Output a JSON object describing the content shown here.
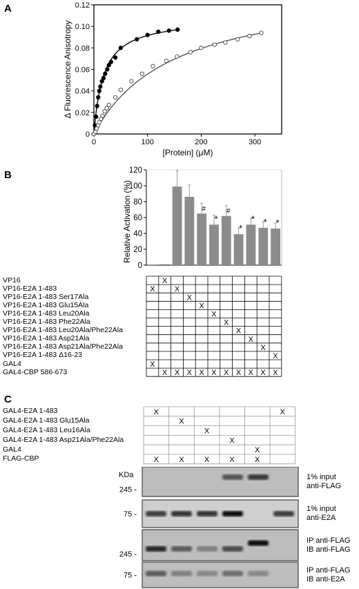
{
  "panel_labels": {
    "a": "A",
    "b": "B",
    "c": "C"
  },
  "chart_data": [
    {
      "type": "scatter",
      "title": "",
      "xlabel": "[Protein] (μM)",
      "ylabel": "Δ Fluorescence Anisotropy",
      "xlim": [
        0,
        350
      ],
      "ylim": [
        0,
        0.12
      ],
      "x_ticks": [
        0,
        100,
        200,
        300
      ],
      "y_ticks": [
        0,
        0.02,
        0.04,
        0.06,
        0.08,
        0.1,
        0.12
      ],
      "y_tick_labels": [
        "0",
        "0.02",
        "0.04",
        "0.06",
        "0.08",
        "0.10",
        "0.12"
      ],
      "grid": false,
      "series": [
        {
          "marker": "filled",
          "color": "#000000",
          "points": [
            [
              0,
              0
            ],
            [
              2,
              0.008
            ],
            [
              4,
              0.016
            ],
            [
              6,
              0.026
            ],
            [
              8,
              0.034
            ],
            [
              10,
              0.04
            ],
            [
              12,
              0.044
            ],
            [
              15,
              0.049
            ],
            [
              18,
              0.052
            ],
            [
              21,
              0.056
            ],
            [
              25,
              0.06
            ],
            [
              28,
              0.064
            ],
            [
              32,
              0.067
            ],
            [
              40,
              0.071
            ],
            [
              50,
              0.08
            ],
            [
              80,
              0.088
            ],
            [
              100,
              0.092
            ],
            [
              120,
              0.095
            ],
            [
              140,
              0.096
            ],
            [
              156,
              0.097
            ]
          ],
          "fit_kd": 18,
          "fit_bmax": 0.108
        },
        {
          "marker": "open",
          "color": "#555555",
          "points": [
            [
              0,
              0
            ],
            [
              3,
              0.002
            ],
            [
              5,
              0.005
            ],
            [
              8,
              0.008
            ],
            [
              10,
              0.011
            ],
            [
              13,
              0.014
            ],
            [
              16,
              0.017
            ],
            [
              20,
              0.021
            ],
            [
              24,
              0.024
            ],
            [
              28,
              0.027
            ],
            [
              40,
              0.034
            ],
            [
              50,
              0.041
            ],
            [
              70,
              0.049
            ],
            [
              90,
              0.056
            ],
            [
              110,
              0.063
            ],
            [
              135,
              0.068
            ],
            [
              155,
              0.072
            ],
            [
              180,
              0.076
            ],
            [
              200,
              0.08
            ],
            [
              225,
              0.083
            ],
            [
              245,
              0.085
            ],
            [
              268,
              0.088
            ],
            [
              290,
              0.091
            ],
            [
              312,
              0.094
            ]
          ],
          "fit_kd": 150,
          "fit_bmax": 0.139
        }
      ]
    },
    {
      "type": "bar",
      "title": "",
      "xlabel": "",
      "ylabel": "Relative Activation (%)",
      "ylim": [
        0,
        120
      ],
      "y_ticks": [
        0,
        20,
        40,
        60,
        80,
        100,
        120
      ],
      "grid": false,
      "values": [
        0.5,
        0.8,
        99,
        86,
        65,
        51,
        62,
        39,
        51,
        47,
        46
      ],
      "errors": [
        0,
        0,
        20,
        15,
        13,
        12,
        13,
        8,
        8,
        8,
        7
      ],
      "annotations": [
        "",
        "",
        "",
        "",
        "#",
        "*",
        "#",
        "*",
        "*",
        "*",
        "*"
      ],
      "bar_color": "#8c8c8c"
    }
  ],
  "table_b": {
    "rows": [
      "VP16",
      "VP16-E2A 1-483",
      "VP16-E2A 1-483 Ser17Ala",
      "VP16-E2A 1-483 Glu15Ala",
      "VP16-E2A 1-483 Leu20Ala",
      "VP16-E2A 1-483 Phe22Ala",
      "VP16-E2A 1-483 Leu20Ala/Phe22Ala",
      "VP16-E2A 1-483 Asp21Ala",
      "VP16-E2A 1-483 Asp21Ala/Phe22Ala",
      "VP16-E2A 1-483 Δ16-23",
      "GAL4",
      "GAL4-CBP 586-673"
    ],
    "mark": "X",
    "marks": [
      [
        0,
        1
      ],
      [
        1,
        0
      ],
      [
        1,
        2
      ],
      [
        2,
        3
      ],
      [
        3,
        4
      ],
      [
        4,
        5
      ],
      [
        5,
        6
      ],
      [
        6,
        7
      ],
      [
        7,
        8
      ],
      [
        8,
        9
      ],
      [
        9,
        10
      ],
      [
        10,
        0
      ],
      [
        11,
        1
      ],
      [
        11,
        2
      ],
      [
        11,
        3
      ],
      [
        11,
        4
      ],
      [
        11,
        5
      ],
      [
        11,
        6
      ],
      [
        11,
        7
      ],
      [
        11,
        8
      ],
      [
        11,
        9
      ],
      [
        11,
        10
      ]
    ]
  },
  "table_c": {
    "rows": [
      "GAL4-E2A 1-483",
      "GAL4-E2A 1-483 Glu15Ala",
      "GAL4-E2A 1-483 Leu16Ala",
      "GAL4-E2A 1-483 Asp21Ala/Phe22Ala",
      "GAL4",
      "FLAG-CBP"
    ],
    "mark": "X",
    "marks": [
      [
        0,
        0
      ],
      [
        0,
        5
      ],
      [
        1,
        1
      ],
      [
        2,
        2
      ],
      [
        3,
        3
      ],
      [
        4,
        4
      ],
      [
        5,
        0
      ],
      [
        5,
        1
      ],
      [
        5,
        2
      ],
      [
        5,
        3
      ],
      [
        5,
        4
      ]
    ]
  },
  "blots": {
    "kda_label": "KDa",
    "strips": [
      {
        "marker": "245",
        "label1": "1% input",
        "label2": "anti-FLAG"
      },
      {
        "marker": "75",
        "label1": "1% input",
        "label2": "anti-E2A"
      },
      {
        "marker": "245",
        "label1": "IP anti-FLAG",
        "label2": "IB anti-FLAG"
      },
      {
        "marker": "75",
        "label1": "IP anti-FLAG",
        "label2": "IB anti-E2A"
      }
    ]
  }
}
